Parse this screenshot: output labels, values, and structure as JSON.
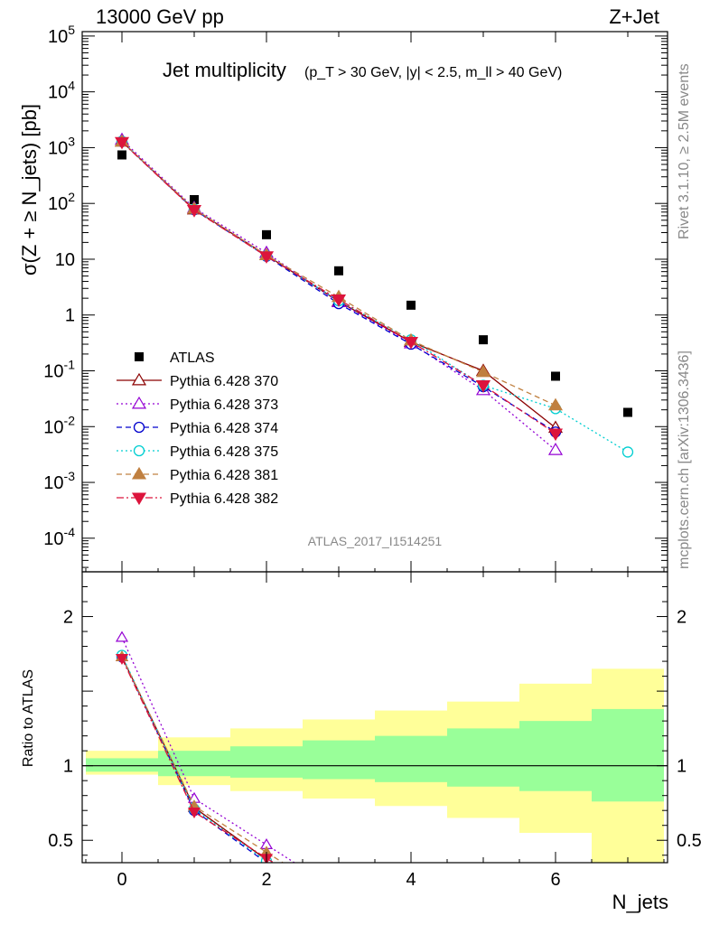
{
  "header": {
    "left": "13000 GeV pp",
    "right": "Z+Jet"
  },
  "main_title": {
    "text": "Jet multiplicity",
    "cuts": "(p_T > 30 GeV, |y| < 2.5, m_ll > 40 GeV)"
  },
  "side_labels": {
    "rivet": "Rivet 3.1.10, ≥ 2.5M events",
    "mcplots": "mcplots.cern.ch [arXiv:1306.3436]"
  },
  "analysis_tag": "ATLAS_2017_I1514251",
  "axes": {
    "ylabel_top": "σ(Z + ≥ N_jets) [pb]",
    "ylabel_bottom": "Ratio to ATLAS",
    "xlabel": "N_jets",
    "x_ticks": [
      "0",
      "2",
      "4",
      "6"
    ],
    "y_ticks_top": [
      "10^5",
      "10^4",
      "10^3",
      "10^2",
      "10",
      "1",
      "10^-1",
      "10^-2",
      "10^-3",
      "10^-4"
    ],
    "y_ticks_bottom": [
      "2",
      "1",
      "0.5"
    ]
  },
  "colors": {
    "atlas": "#000000",
    "p370": "#8b0000",
    "p373": "#9400d3",
    "p374": "#0000cd",
    "p375": "#00ced1",
    "p381": "#c08040",
    "p382": "#dc143c",
    "band_inner": "#99ff99",
    "band_outer": "#ffff99"
  },
  "chart_data": [
    {
      "type": "scatter",
      "panel": "main",
      "title": "Jet multiplicity",
      "xlabel": "N_jets",
      "ylabel": "σ(Z + ≥ N_jets) [pb]",
      "yscale": "log",
      "xlim": [
        -0.55,
        7.55
      ],
      "ylim": [
        2.5e-05,
        120000
      ],
      "x": [
        0,
        1,
        2,
        3,
        4,
        5,
        6,
        7
      ],
      "series": [
        {
          "name": "ATLAS",
          "key": "atlas",
          "style": "square",
          "values": [
            740,
            117,
            27.5,
            6.2,
            1.5,
            0.36,
            0.08,
            0.018
          ]
        },
        {
          "name": "Pythia 6.428 370",
          "key": "p370",
          "style": "solid",
          "marker": "triangle-up-open",
          "values": [
            1280,
            78,
            11.8,
            1.75,
            0.33,
            0.1,
            0.0095,
            null
          ]
        },
        {
          "name": "Pythia 6.428 373",
          "key": "p373",
          "style": "dotted",
          "marker": "triangle-up-open",
          "values": [
            1380,
            83,
            13,
            1.7,
            0.31,
            0.045,
            0.0038,
            null
          ]
        },
        {
          "name": "Pythia 6.428 374",
          "key": "p374",
          "style": "dashed",
          "marker": "circle-open",
          "values": [
            1280,
            77,
            11.3,
            1.6,
            0.3,
            0.052,
            0.008,
            null
          ]
        },
        {
          "name": "Pythia 6.428 375",
          "key": "p375",
          "style": "dotted",
          "marker": "circle-open",
          "values": [
            1300,
            79,
            11.6,
            1.8,
            0.36,
            0.055,
            0.021,
            0.0035
          ]
        },
        {
          "name": "Pythia 6.428 381",
          "key": "p381",
          "style": "dashed",
          "marker": "triangle-up-filled",
          "values": [
            1280,
            80,
            11.8,
            2.1,
            0.35,
            0.095,
            0.024,
            null
          ]
        },
        {
          "name": "Pythia 6.428 382",
          "key": "p382",
          "style": "dashdot",
          "marker": "triangle-down-filled",
          "values": [
            1260,
            76,
            11.3,
            1.9,
            0.33,
            0.055,
            0.0075,
            null
          ]
        }
      ]
    },
    {
      "type": "line",
      "panel": "ratio",
      "ylabel": "Ratio to ATLAS",
      "ylim": [
        0.35,
        2.3
      ],
      "x": [
        0,
        1,
        2
      ],
      "band": {
        "bins": [
          [
            -0.5,
            0.5
          ],
          [
            0.5,
            1.5
          ],
          [
            1.5,
            2.5
          ],
          [
            2.5,
            3.5
          ],
          [
            3.5,
            4.5
          ],
          [
            4.5,
            5.5
          ],
          [
            5.5,
            6.5
          ],
          [
            6.5,
            7.5
          ]
        ],
        "inner": [
          [
            0.96,
            1.05
          ],
          [
            0.93,
            1.1
          ],
          [
            0.92,
            1.13
          ],
          [
            0.91,
            1.17
          ],
          [
            0.89,
            1.2
          ],
          [
            0.86,
            1.25
          ],
          [
            0.83,
            1.3
          ],
          [
            0.76,
            1.38
          ]
        ],
        "outer": [
          [
            0.94,
            1.1
          ],
          [
            0.87,
            1.19
          ],
          [
            0.83,
            1.25
          ],
          [
            0.78,
            1.31
          ],
          [
            0.73,
            1.37
          ],
          [
            0.65,
            1.43
          ],
          [
            0.55,
            1.55
          ],
          [
            0.34,
            1.65
          ]
        ]
      },
      "series": [
        {
          "name": "Pythia 6.428 370",
          "key": "p370",
          "values": [
            1.73,
            0.72,
            0.37
          ]
        },
        {
          "name": "Pythia 6.428 373",
          "key": "p373",
          "values": [
            1.86,
            0.78,
            0.47
          ]
        },
        {
          "name": "Pythia 6.428 374",
          "key": "p374",
          "values": [
            1.73,
            0.7,
            0.35
          ]
        },
        {
          "name": "Pythia 6.428 375",
          "key": "p375",
          "values": [
            1.74,
            0.71,
            0.36
          ]
        },
        {
          "name": "Pythia 6.428 381",
          "key": "p381",
          "values": [
            1.73,
            0.73,
            0.42
          ]
        },
        {
          "name": "Pythia 6.428 382",
          "key": "p382",
          "values": [
            1.72,
            0.69,
            0.38
          ]
        }
      ]
    }
  ]
}
